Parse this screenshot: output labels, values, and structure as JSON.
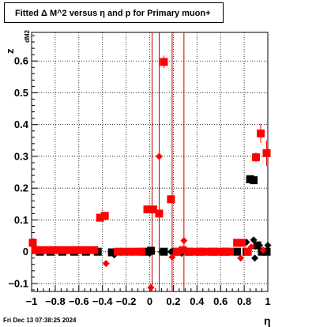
{
  "title": "Fitted Δ M^2 versus η and p for Primary muon+",
  "timestamp": "Fri Dec 13 07:38:25 2024",
  "chart_data": {
    "type": "scatter",
    "title": "Fitted Δ M^2 versus η and p for Primary muon+",
    "xlabel": "η",
    "ylabel": "z",
    "ylabel_sub": "dM2",
    "xlim": [
      -1,
      1
    ],
    "ylim": [
      -0.125,
      0.69
    ],
    "grid": true,
    "x_ticks": [
      -1,
      -0.8,
      -0.6,
      -0.4,
      -0.2,
      0,
      0.2,
      0.4,
      0.6,
      0.8,
      1
    ],
    "x_tick_labels": [
      "−1",
      "−0.8",
      "−0.6",
      "−0.4",
      "−0.2",
      "0",
      "0.2",
      "0.4",
      "0.6",
      "0.8",
      "1"
    ],
    "y_ticks": [
      -0.1,
      0,
      0.1,
      0.2,
      0.3,
      0.4,
      0.5,
      0.6
    ],
    "y_tick_labels": [
      "−0.1",
      "0",
      "0.1",
      "0.2",
      "0.3",
      "0.4",
      "0.5",
      "0.6"
    ],
    "vertical_lines": [
      0.02,
      0.08,
      0.19,
      0.29
    ],
    "colors": {
      "red": "#ff0000",
      "black": "#000000",
      "vline": "#c00000"
    },
    "series": [
      {
        "color": "black",
        "marker": "square",
        "points": [
          [
            -0.93,
            0.0,
            0.006
          ],
          [
            -0.84,
            0.0,
            0.006
          ],
          [
            -0.74,
            0.0,
            0.006
          ],
          [
            -0.64,
            0.0,
            0.006
          ],
          [
            -0.54,
            0.0,
            0.006
          ],
          [
            -0.44,
            0.0,
            0.006
          ],
          [
            -0.32,
            -0.002,
            0.008
          ],
          [
            -0.04,
            0.0,
            0.006
          ],
          [
            0.01,
            0.003,
            0.008
          ],
          [
            0.12,
            0.0,
            0.006
          ],
          [
            0.22,
            0.0,
            0.006
          ],
          [
            0.33,
            0.0,
            0.006
          ],
          [
            0.43,
            0.0,
            0.006
          ],
          [
            0.54,
            0.0,
            0.006
          ],
          [
            0.64,
            0.0,
            0.006
          ],
          [
            0.74,
            0.0,
            0.006
          ],
          [
            0.82,
            0.0,
            0.006
          ],
          [
            0.85,
            0.228,
            0.005
          ],
          [
            0.88,
            0.225,
            0.005
          ],
          [
            0.91,
            0.02,
            0.008
          ],
          [
            0.95,
            0.0,
            0.01
          ],
          [
            0.99,
            0.0,
            0.01
          ]
        ]
      },
      {
        "color": "black",
        "marker": "diamond",
        "points": [
          [
            -0.3,
            -0.01,
            0.006
          ],
          [
            0.0,
            -0.005,
            0.006
          ],
          [
            0.1,
            0.0,
            0.006
          ],
          [
            0.18,
            0.0,
            0.006
          ],
          [
            0.27,
            -0.005,
            0.006
          ],
          [
            0.82,
            0.03,
            0.006
          ],
          [
            0.88,
            0.037,
            0.006
          ],
          [
            0.89,
            -0.02,
            0.006
          ],
          [
            0.93,
            0.02,
            0.006
          ],
          [
            0.97,
            0.0,
            0.006
          ],
          [
            1.0,
            0.02,
            0.006
          ]
        ]
      },
      {
        "color": "red",
        "marker": "square",
        "points": [
          [
            -0.99,
            0.028,
            0.006
          ],
          [
            -0.97,
            0.005,
            0.004
          ],
          [
            -0.92,
            0.005,
            0.004
          ],
          [
            -0.87,
            0.005,
            0.004
          ],
          [
            -0.82,
            0.005,
            0.004
          ],
          [
            -0.77,
            0.005,
            0.004
          ],
          [
            -0.72,
            0.005,
            0.004
          ],
          [
            -0.67,
            0.005,
            0.004
          ],
          [
            -0.62,
            0.005,
            0.004
          ],
          [
            -0.57,
            0.005,
            0.004
          ],
          [
            -0.52,
            0.005,
            0.004
          ],
          [
            -0.47,
            0.005,
            0.004
          ],
          [
            -0.42,
            0.107,
            0.005
          ],
          [
            -0.38,
            0.113,
            0.005
          ],
          [
            -0.27,
            0.0,
            0.004
          ],
          [
            -0.22,
            0.0,
            0.004
          ],
          [
            -0.17,
            0.0,
            0.004
          ],
          [
            -0.12,
            0.0,
            0.004
          ],
          [
            -0.07,
            0.0,
            0.004
          ],
          [
            -0.02,
            0.133,
            0.005
          ],
          [
            0.03,
            0.133,
            0.005
          ],
          [
            0.08,
            0.12,
            0.006
          ],
          [
            0.12,
            0.597,
            0.02
          ],
          [
            0.18,
            0.165,
            0.01
          ],
          [
            0.23,
            0.0,
            0.004
          ],
          [
            0.28,
            0.005,
            0.004
          ],
          [
            0.33,
            0.0,
            0.004
          ],
          [
            0.38,
            0.0,
            0.004
          ],
          [
            0.43,
            0.0,
            0.004
          ],
          [
            0.48,
            0.0,
            0.004
          ],
          [
            0.53,
            0.0,
            0.004
          ],
          [
            0.58,
            0.0,
            0.004
          ],
          [
            0.63,
            0.0,
            0.004
          ],
          [
            0.68,
            0.0,
            0.004
          ],
          [
            0.74,
            0.028,
            0.006
          ],
          [
            0.78,
            0.028,
            0.006
          ],
          [
            0.83,
            0.0,
            0.006
          ],
          [
            0.9,
            0.297,
            0.015
          ],
          [
            0.94,
            0.372,
            0.03
          ],
          [
            0.99,
            0.31,
            0.04
          ]
        ]
      },
      {
        "color": "red",
        "marker": "diamond",
        "points": [
          [
            -0.37,
            -0.037,
            0.005
          ],
          [
            0.01,
            -0.113,
            0.008
          ],
          [
            0.08,
            0.3,
            0.006
          ],
          [
            0.19,
            -0.017,
            0.005
          ],
          [
            0.29,
            0.035,
            0.005
          ],
          [
            0.27,
            0.005,
            0.005
          ],
          [
            0.77,
            -0.02,
            0.005
          ],
          [
            0.86,
            0.015,
            0.005
          ],
          [
            0.96,
            0.005,
            0.005
          ]
        ]
      }
    ]
  }
}
